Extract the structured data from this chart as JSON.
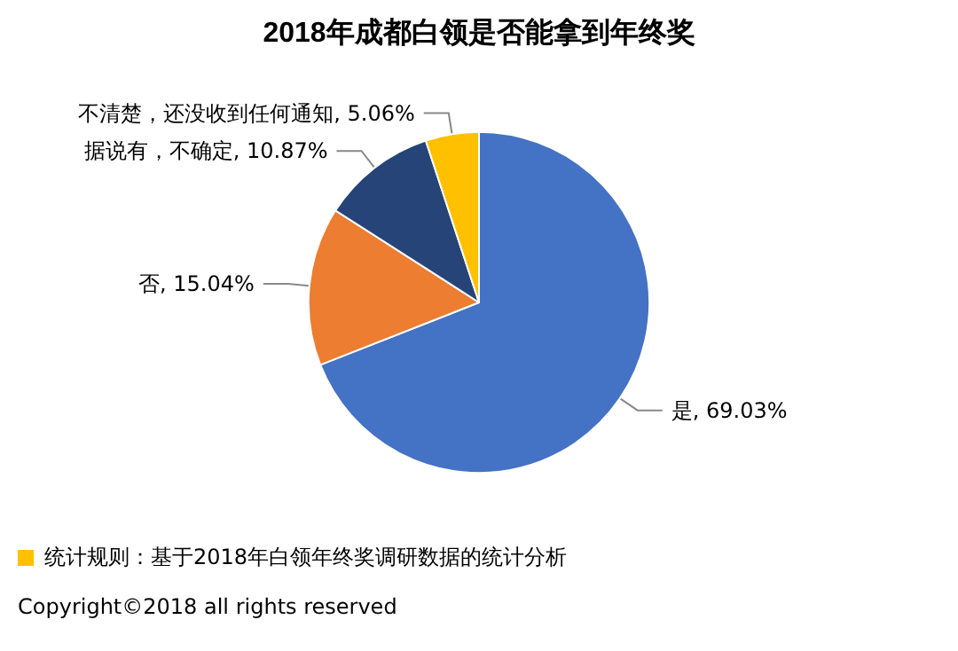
{
  "chart_data": {
    "type": "pie",
    "title": "2018年成都白领是否能拿到年终奖",
    "categories": [
      "是",
      "否",
      "据说有，不确定",
      "不清楚，还没收到任何通知"
    ],
    "value_labels": [
      "69.03%",
      "15.04%",
      "10.87%",
      "5.06%"
    ],
    "values": [
      69.03,
      15.04,
      10.87,
      5.06
    ],
    "colors": [
      "#4472c4",
      "#ed7d31",
      "#264478",
      "#ffc000"
    ],
    "annotations": [
      "统计规则：基于2018年白领年终奖调研数据的统计分析",
      "Copyright©2018 all rights reserved"
    ]
  }
}
